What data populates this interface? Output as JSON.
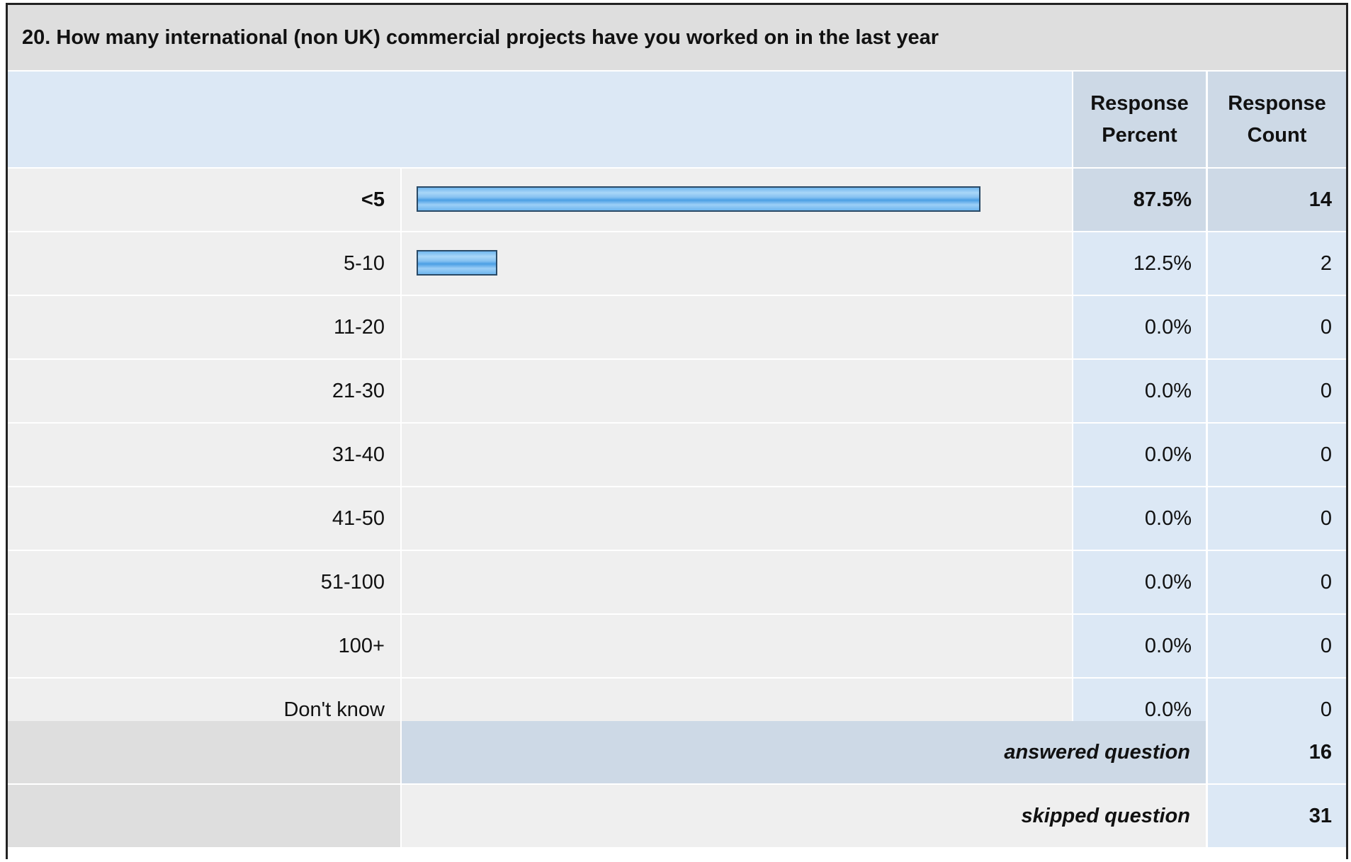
{
  "question": {
    "title": "20. How many international (non UK) commercial projects have you worked on in the last year"
  },
  "header": {
    "percent_label": "Response Percent",
    "count_label": "Response Count"
  },
  "rows": [
    {
      "label": "<5",
      "percent": "87.5%",
      "count": "14"
    },
    {
      "label": "5-10",
      "percent": "12.5%",
      "count": "2"
    },
    {
      "label": "11-20",
      "percent": "0.0%",
      "count": "0"
    },
    {
      "label": "21-30",
      "percent": "0.0%",
      "count": "0"
    },
    {
      "label": "31-40",
      "percent": "0.0%",
      "count": "0"
    },
    {
      "label": "41-50",
      "percent": "0.0%",
      "count": "0"
    },
    {
      "label": "51-100",
      "percent": "0.0%",
      "count": "0"
    },
    {
      "label": "100+",
      "percent": "0.0%",
      "count": "0"
    },
    {
      "label": "Don't know",
      "percent": "0.0%",
      "count": "0"
    }
  ],
  "summary": {
    "answered_label": "answered question",
    "answered_value": "16",
    "skipped_label": "skipped question",
    "skipped_value": "31"
  },
  "colors": {
    "bar_fill": "#6fb6ee",
    "bar_border": "#2a4a66",
    "header_bg": "#dce8f5",
    "header_cell_bg": "#cdd9e6",
    "row_bg": "#efefef"
  },
  "chart_data": {
    "type": "bar",
    "orientation": "horizontal",
    "title": "20. How many international (non UK) commercial projects have you worked on in the last year",
    "categories": [
      "<5",
      "5-10",
      "11-20",
      "21-30",
      "31-40",
      "41-50",
      "51-100",
      "100+",
      "Don't know"
    ],
    "series": [
      {
        "values": [
          87.5,
          12.5,
          0.0,
          0.0,
          0.0,
          0.0,
          0.0,
          0.0,
          0.0
        ]
      }
    ],
    "counts": [
      14,
      2,
      0,
      0,
      0,
      0,
      0,
      0,
      0
    ],
    "xlim": [
      0,
      100
    ],
    "grid": false,
    "legend": "none"
  }
}
